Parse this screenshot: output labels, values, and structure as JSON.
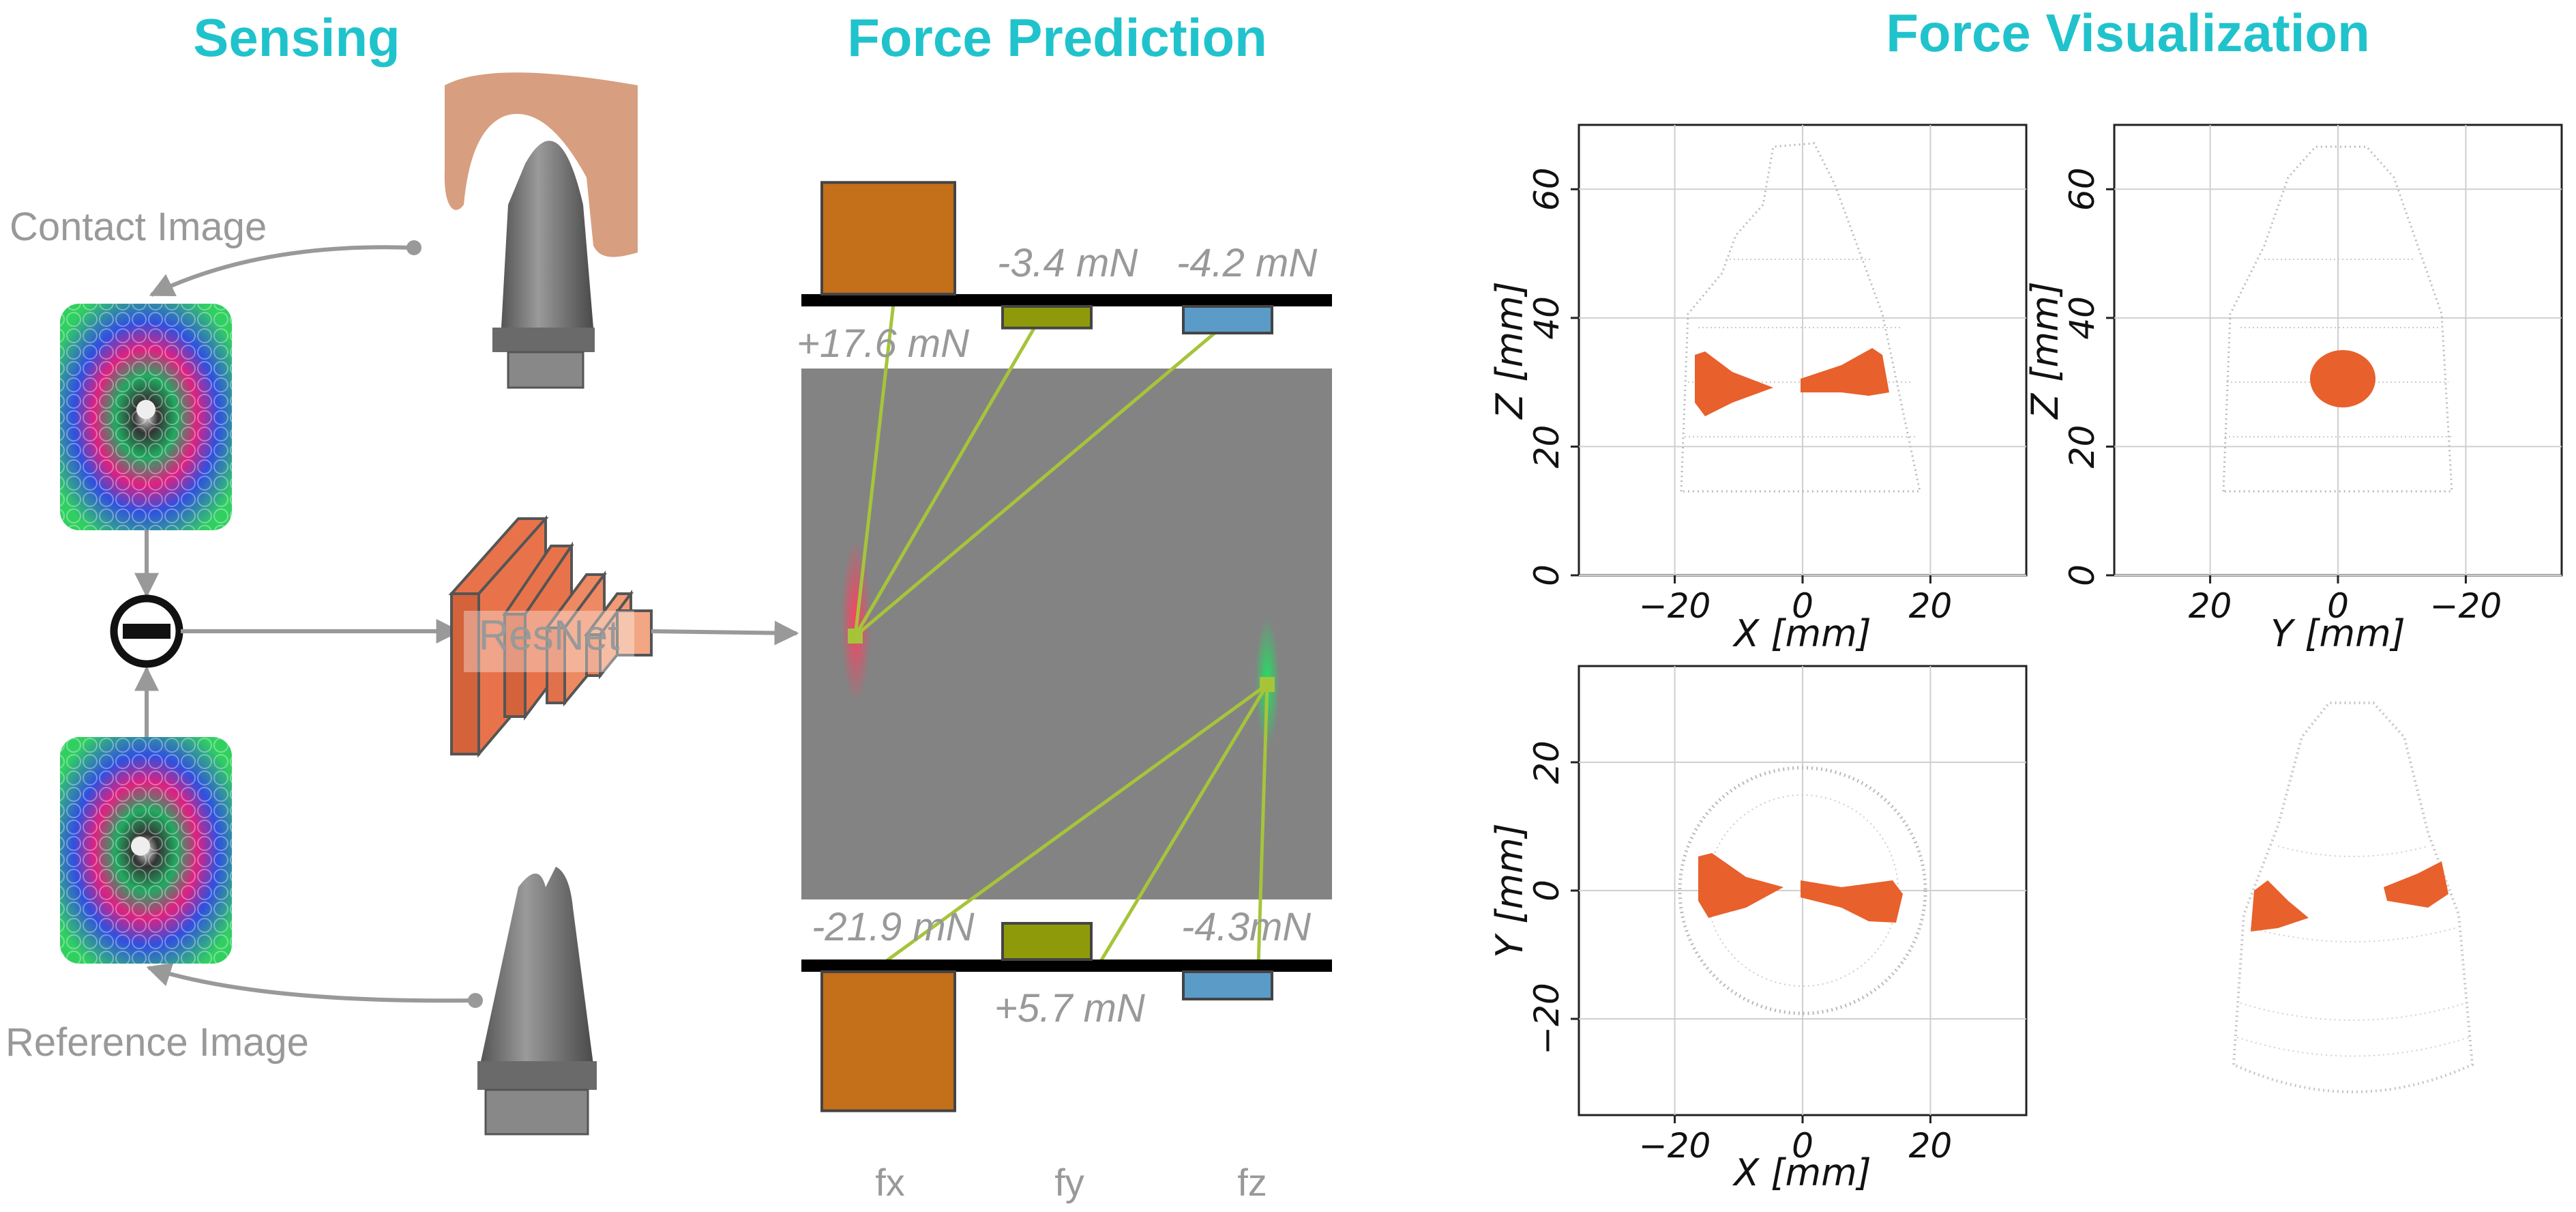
{
  "sections": {
    "sensing": "Sensing",
    "prediction": "Force Prediction",
    "visualization": "Force Visualization"
  },
  "sensing": {
    "contact_label": "Contact Image",
    "reference_label": "Reference Image",
    "network_label": "ResNet"
  },
  "prediction": {
    "top_labels": [
      "+17.6 mN",
      "-3.4 mN",
      "-4.2 mN"
    ],
    "bottom_labels": [
      "-21.9 mN",
      "+5.7 mN",
      "-4.3mN"
    ],
    "axis_labels": [
      "fx",
      "fy",
      "fz"
    ]
  },
  "chart_data": [
    {
      "type": "bar",
      "categories": [
        "fx",
        "fy",
        "fz"
      ],
      "values": [
        17.6,
        -3.4,
        -4.2
      ],
      "colors": [
        "#c46f1a",
        "#8f9a0a",
        "#5b9bc8"
      ]
    },
    {
      "type": "bar",
      "categories": [
        "fx",
        "fy",
        "fz"
      ],
      "values": [
        -21.9,
        5.7,
        -4.3
      ],
      "colors": [
        "#c46f1a",
        "#8f9a0a",
        "#5b9bc8"
      ]
    },
    {
      "type": "scatter",
      "xlabel": "X [mm]",
      "ylabel": "Z [mm]",
      "xticks": [
        -20,
        0,
        20
      ],
      "yticks": [
        0,
        20,
        40,
        60
      ],
      "xlim": [
        -35,
        35
      ],
      "ylim": [
        0,
        70
      ]
    },
    {
      "type": "scatter",
      "xlabel": "Y [mm]",
      "ylabel": "Z [mm]",
      "xticks": [
        20,
        0,
        -20
      ],
      "yticks": [
        0,
        20,
        40,
        60
      ],
      "xlim": [
        35,
        -35
      ],
      "ylim": [
        0,
        70
      ]
    },
    {
      "type": "scatter",
      "xlabel": "X [mm]",
      "ylabel": "Y [mm]",
      "xticks": [
        -20,
        0,
        20
      ],
      "yticks": [
        -20,
        0,
        20
      ],
      "xlim": [
        -35,
        35
      ],
      "ylim": [
        -35,
        35
      ]
    }
  ],
  "colors": {
    "title": "#20c3cc",
    "fx": "#c46f1a",
    "fy": "#8f9a0a",
    "fz": "#5b9bc8",
    "force_points": "#e8602c",
    "connector": "#a6c43a",
    "resnet": "#e8734a"
  }
}
